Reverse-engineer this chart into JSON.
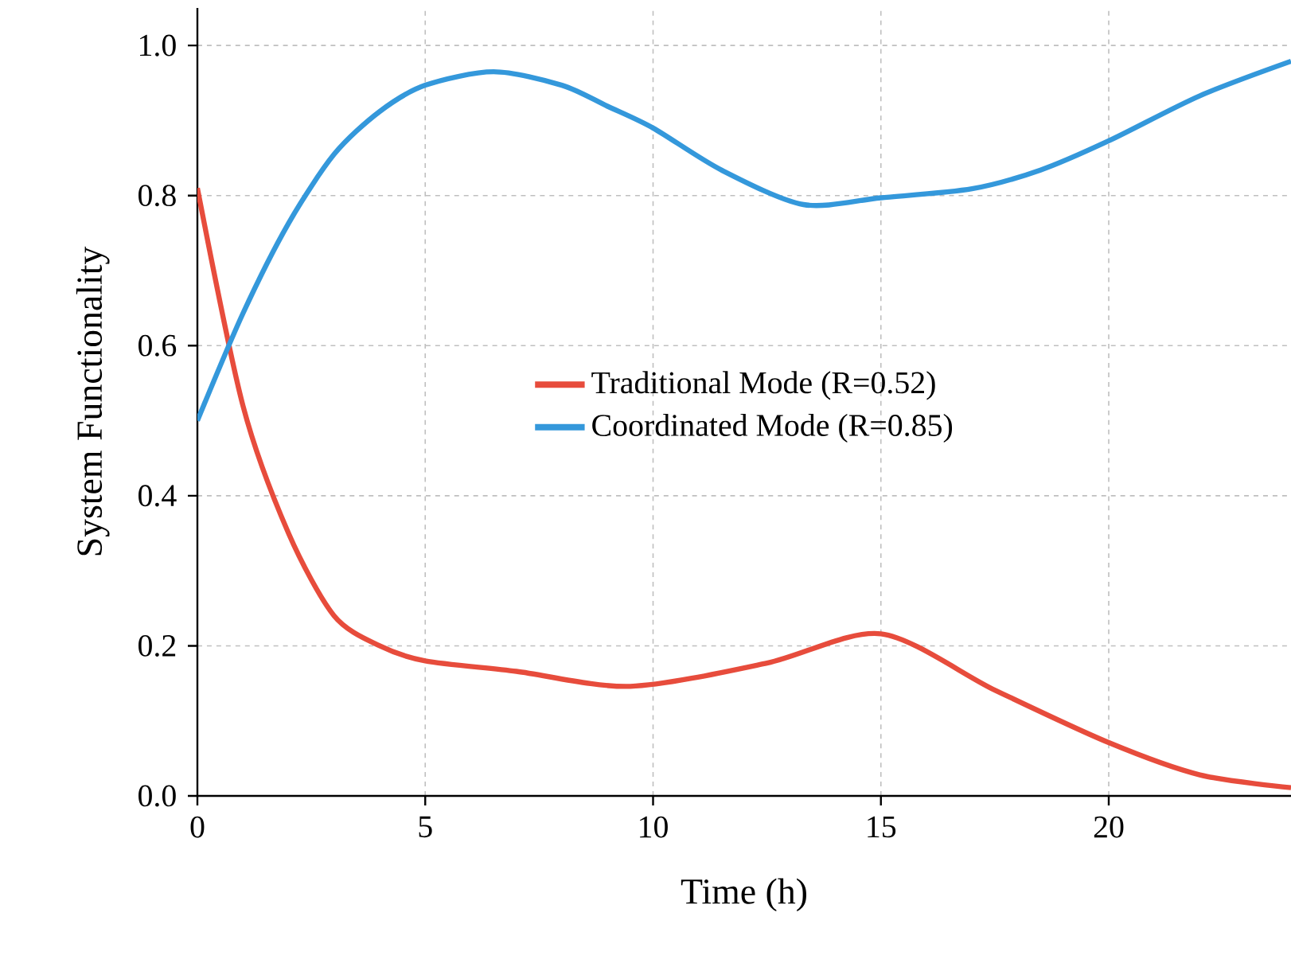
{
  "chart_data": {
    "type": "line",
    "xlabel": "Time (h)",
    "ylabel": "System Functionality",
    "xlim": [
      0,
      24
    ],
    "ylim": [
      0,
      1.05
    ],
    "xticks": [
      0,
      5,
      10,
      15,
      20
    ],
    "yticks": [
      {
        "value": 0,
        "label": "0.0"
      },
      {
        "value": 0.2,
        "label": "0.2"
      },
      {
        "value": 0.4,
        "label": "0.4"
      },
      {
        "value": 0.6,
        "label": "0.6"
      },
      {
        "value": 0.8,
        "label": "0.8"
      },
      {
        "value": 1.0,
        "label": "1.0"
      }
    ],
    "grid": true,
    "legend": "center",
    "marker": "none",
    "line_style": "solid",
    "series": [
      {
        "name": "Traditional Mode (R=0.52)",
        "color": "#e74c3c",
        "x": [
          0,
          1,
          2,
          3,
          4,
          5,
          7,
          9.5,
          12.5,
          15,
          17.5,
          20,
          22,
          24
        ],
        "values": [
          0.81,
          0.52,
          0.35,
          0.24,
          0.2,
          0.18,
          0.166,
          0.146,
          0.177,
          0.216,
          0.141,
          0.071,
          0.028,
          0.011
        ]
      },
      {
        "name": "Coordinated Mode (R=0.85)",
        "color": "#3498db",
        "x": [
          0,
          1,
          2,
          3,
          4,
          5,
          6.5,
          8,
          9,
          10,
          11.5,
          13.3,
          15,
          17,
          18.5,
          20,
          22,
          24
        ],
        "values": [
          0.5,
          0.643,
          0.763,
          0.855,
          0.912,
          0.947,
          0.965,
          0.947,
          0.919,
          0.89,
          0.834,
          0.788,
          0.797,
          0.809,
          0.834,
          0.873,
          0.933,
          0.979
        ]
      }
    ]
  }
}
